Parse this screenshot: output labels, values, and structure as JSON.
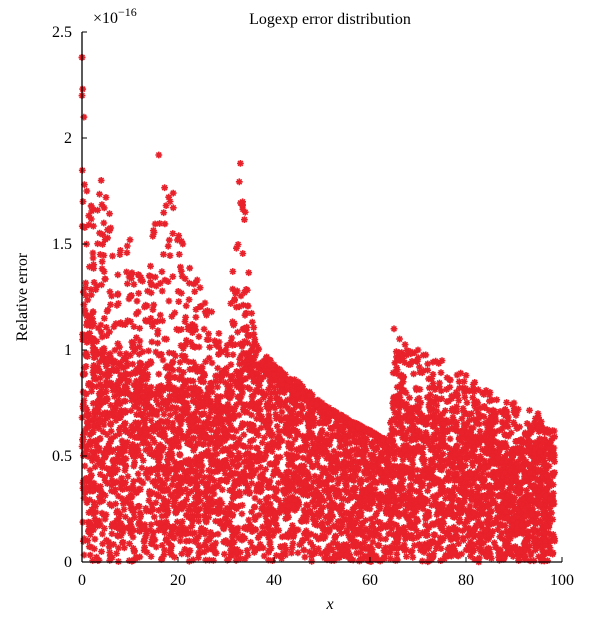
{
  "chart_data": {
    "type": "scatter",
    "title": "Logexp error distribution",
    "xlabel": "x",
    "ylabel": "Relative error",
    "exponent_label": "×10",
    "exponent_power": "−16",
    "xlim": [
      0,
      100
    ],
    "ylim": [
      0,
      2.5
    ],
    "xticks": [
      "0",
      "20",
      "40",
      "60",
      "80",
      "100"
    ],
    "yticks": [
      "0",
      "0.5",
      "1",
      "1.5",
      "2",
      "2.5"
    ],
    "grid": false,
    "legend": "none",
    "marker": "star",
    "series": [
      {
        "color": "#e8212a",
        "points_description": "dense cloud of ~10^4 samples, relative error ×1e-16",
        "envelope": [
          [
            0,
            2.38
          ],
          [
            1,
            1.75
          ],
          [
            4,
            1.8
          ],
          [
            5,
            1.72
          ],
          [
            8,
            1.47
          ],
          [
            10,
            1.52
          ],
          [
            14,
            1.35
          ],
          [
            16,
            1.92
          ],
          [
            19,
            1.74
          ],
          [
            21,
            1.5
          ],
          [
            24,
            1.33
          ],
          [
            27,
            1.18
          ],
          [
            30,
            1.0
          ],
          [
            33,
            1.88
          ],
          [
            34,
            1.65
          ],
          [
            36,
            1.05
          ],
          [
            40,
            0.93
          ],
          [
            45,
            0.85
          ],
          [
            50,
            0.75
          ],
          [
            55,
            0.68
          ],
          [
            60,
            0.62
          ],
          [
            64,
            0.57
          ],
          [
            65,
            1.1
          ],
          [
            70,
            1.0
          ],
          [
            75,
            0.95
          ],
          [
            80,
            0.88
          ],
          [
            85,
            0.8
          ],
          [
            90,
            0.75
          ],
          [
            95,
            0.7
          ],
          [
            98,
            0.62
          ]
        ],
        "dense_band_top": [
          [
            0,
            1.05
          ],
          [
            5,
            0.95
          ],
          [
            10,
            0.9
          ],
          [
            15,
            0.85
          ],
          [
            20,
            0.8
          ],
          [
            25,
            0.78
          ],
          [
            30,
            0.72
          ],
          [
            34,
            0.95
          ],
          [
            38,
            0.9
          ],
          [
            45,
            0.78
          ],
          [
            50,
            0.72
          ],
          [
            55,
            0.66
          ],
          [
            60,
            0.61
          ],
          [
            64,
            0.56
          ],
          [
            65,
            0.76
          ],
          [
            70,
            0.7
          ],
          [
            75,
            0.65
          ],
          [
            80,
            0.6
          ],
          [
            85,
            0.56
          ],
          [
            90,
            0.53
          ],
          [
            95,
            0.51
          ],
          [
            98,
            0.5
          ]
        ]
      }
    ]
  }
}
